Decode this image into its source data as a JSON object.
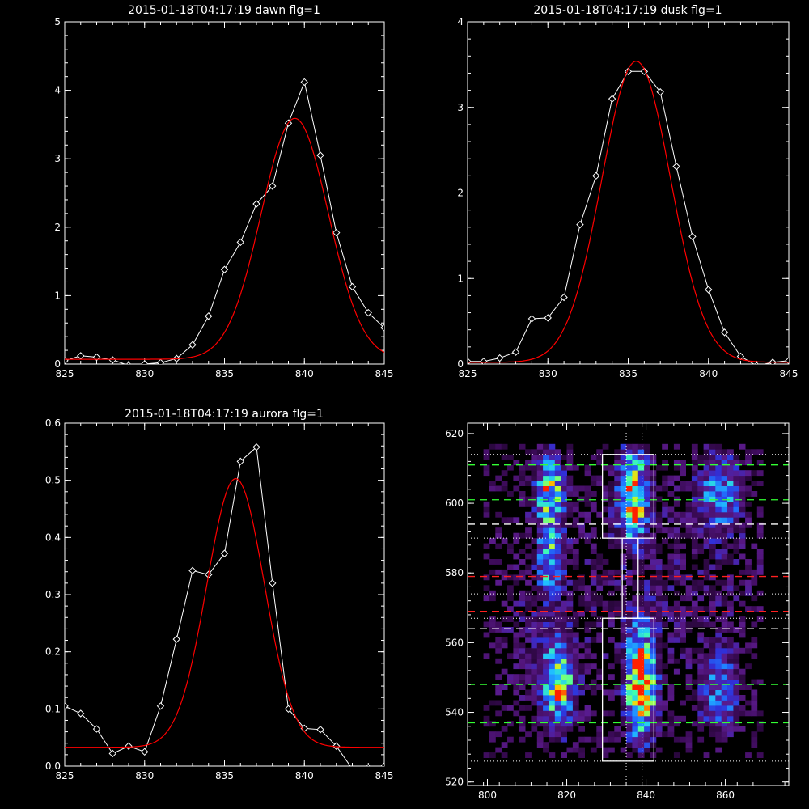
{
  "chart_data": [
    {
      "type": "line",
      "title": "2015-01-18T04:17:19 dawn flg=1",
      "xlim": [
        825,
        845
      ],
      "ylim": [
        0,
        5
      ],
      "xticks": [
        825,
        830,
        835,
        840,
        845
      ],
      "yticks": [
        0,
        1,
        2,
        3,
        4,
        5
      ],
      "xtick_labels": [
        "825",
        "830",
        "835",
        "840",
        "845"
      ],
      "ytick_labels": [
        "0",
        "1",
        "2",
        "3",
        "4",
        "5"
      ],
      "series": [
        {
          "style": "data",
          "color": "#ffffff",
          "marker": "diamond",
          "x": [
            825,
            826,
            827,
            828,
            829,
            830,
            831,
            832,
            833,
            834,
            835,
            836,
            837,
            838,
            839,
            840,
            841,
            842,
            843,
            844,
            845
          ],
          "y": [
            0.05,
            0.12,
            0.1,
            0.06,
            -0.02,
            0.0,
            0.02,
            0.08,
            0.28,
            0.7,
            1.38,
            1.78,
            2.34,
            2.6,
            3.52,
            4.12,
            3.05,
            1.92,
            1.13,
            0.75,
            0.53
          ]
        },
        {
          "style": "fit",
          "color": "#ff0000",
          "gauss": {
            "amp": 3.52,
            "center": 839.4,
            "sigma": 2.1,
            "base": 0.07
          }
        }
      ]
    },
    {
      "type": "line",
      "title": "2015-01-18T04:17:19 dusk flg=1",
      "xlim": [
        825,
        845
      ],
      "ylim": [
        0,
        4
      ],
      "xticks": [
        825,
        830,
        835,
        840,
        845
      ],
      "yticks": [
        0,
        1,
        2,
        3,
        4
      ],
      "xtick_labels": [
        "825",
        "830",
        "835",
        "840",
        "845"
      ],
      "ytick_labels": [
        "0",
        "1",
        "2",
        "3",
        "4"
      ],
      "series": [
        {
          "style": "data",
          "color": "#ffffff",
          "marker": "diamond",
          "x": [
            825,
            826,
            827,
            828,
            829,
            830,
            831,
            832,
            833,
            834,
            835,
            836,
            837,
            838,
            839,
            840,
            841,
            842,
            843,
            844,
            845
          ],
          "y": [
            0.03,
            0.03,
            0.07,
            0.14,
            0.53,
            0.54,
            0.78,
            1.63,
            2.2,
            3.1,
            3.42,
            3.42,
            3.18,
            2.31,
            1.49,
            0.87,
            0.37,
            0.09,
            -0.02,
            0.02,
            0.04
          ]
        },
        {
          "style": "fit",
          "color": "#ff0000",
          "gauss": {
            "amp": 3.52,
            "center": 835.5,
            "sigma": 2.15,
            "base": 0.02
          }
        }
      ]
    },
    {
      "type": "line",
      "title": "2015-01-18T04:17:19 aurora flg=1",
      "xlim": [
        825,
        845
      ],
      "ylim": [
        0,
        0.6
      ],
      "xticks": [
        825,
        830,
        835,
        840,
        845
      ],
      "yticks": [
        0,
        0.1,
        0.2,
        0.3,
        0.4,
        0.5,
        0.6
      ],
      "xtick_labels": [
        "825",
        "830",
        "835",
        "840",
        "845"
      ],
      "ytick_labels": [
        "0.0",
        "0.1",
        "0.2",
        "0.3",
        "0.4",
        "0.5",
        "0.6"
      ],
      "series": [
        {
          "style": "data",
          "color": "#ffffff",
          "marker": "diamond",
          "x": [
            825,
            826,
            827,
            828,
            829,
            830,
            831,
            832,
            833,
            834,
            835,
            836,
            837,
            838,
            839,
            840,
            841,
            842,
            843,
            844,
            845
          ],
          "y": [
            0.105,
            0.092,
            0.065,
            0.022,
            0.035,
            0.025,
            0.105,
            0.222,
            0.342,
            0.335,
            0.372,
            0.533,
            0.558,
            0.32,
            0.1,
            0.066,
            0.064,
            0.035,
            -0.005,
            -0.003,
            0.0
          ]
        },
        {
          "style": "fit",
          "color": "#ff0000",
          "gauss": {
            "amp": 0.47,
            "center": 835.7,
            "sigma": 1.8,
            "base": 0.033
          }
        }
      ]
    },
    {
      "type": "heatmap",
      "title": "",
      "xlim": [
        795,
        876
      ],
      "ylim": [
        519,
        623
      ],
      "xticks": [
        800,
        820,
        840,
        860
      ],
      "yticks": [
        520,
        540,
        560,
        580,
        600,
        620
      ],
      "xtick_labels": [
        "800",
        "820",
        "840",
        "860"
      ],
      "ytick_labels": [
        "520",
        "540",
        "560",
        "580",
        "600",
        "620"
      ],
      "colormap": [
        "#000000",
        "#3a0a55",
        "#5a1a8a",
        "#3030d8",
        "#2070ff",
        "#20c0ff",
        "#40ffb0",
        "#b0ff40",
        "#ffd000",
        "#ff2000"
      ],
      "emission_blobs": [
        {
          "x": 815,
          "y": 603,
          "sx": 2.2,
          "sy": 7.0,
          "amp": 0.62
        },
        {
          "x": 815,
          "y": 583,
          "sx": 2.0,
          "sy": 6.0,
          "amp": 0.45
        },
        {
          "x": 817,
          "y": 548,
          "sx": 2.6,
          "sy": 8.0,
          "amp": 0.62
        },
        {
          "x": 836,
          "y": 602,
          "sx": 2.2,
          "sy": 8.0,
          "amp": 0.85
        },
        {
          "x": 838,
          "y": 548,
          "sx": 2.3,
          "sy": 10.0,
          "amp": 0.95
        },
        {
          "x": 839,
          "y": 542,
          "sx": 1.0,
          "sy": 1.5,
          "amp": 0.55
        },
        {
          "x": 858,
          "y": 603,
          "sx": 3.5,
          "sy": 7.0,
          "amp": 0.35
        },
        {
          "x": 858,
          "y": 545,
          "sx": 3.5,
          "sy": 8.0,
          "amp": 0.3
        },
        {
          "x": 850,
          "y": 580,
          "sx": 18.0,
          "sy": 25.0,
          "amp": 0.1
        },
        {
          "x": 812,
          "y": 565,
          "sx": 14.0,
          "sy": 30.0,
          "amp": 0.08
        }
      ],
      "overlays": {
        "white_dotted_vlines_x": [
          835,
          839
        ],
        "white_dotted_hlines_y": [
          526,
          567,
          574,
          590,
          614
        ],
        "white_dashed_hlines_y": [
          564,
          594
        ],
        "green_dashed_hlines_y": [
          537,
          548,
          601,
          611
        ],
        "red_dashed_hlines_y": [
          569,
          579
        ],
        "white_boxes": [
          {
            "x0": 829,
            "x1": 842,
            "y0": 526,
            "y1": 567
          },
          {
            "x0": 829,
            "x1": 842,
            "y0": 590,
            "y1": 614
          },
          {
            "x0": 834,
            "x1": 838,
            "y0": 567,
            "y1": 590
          }
        ]
      }
    }
  ]
}
